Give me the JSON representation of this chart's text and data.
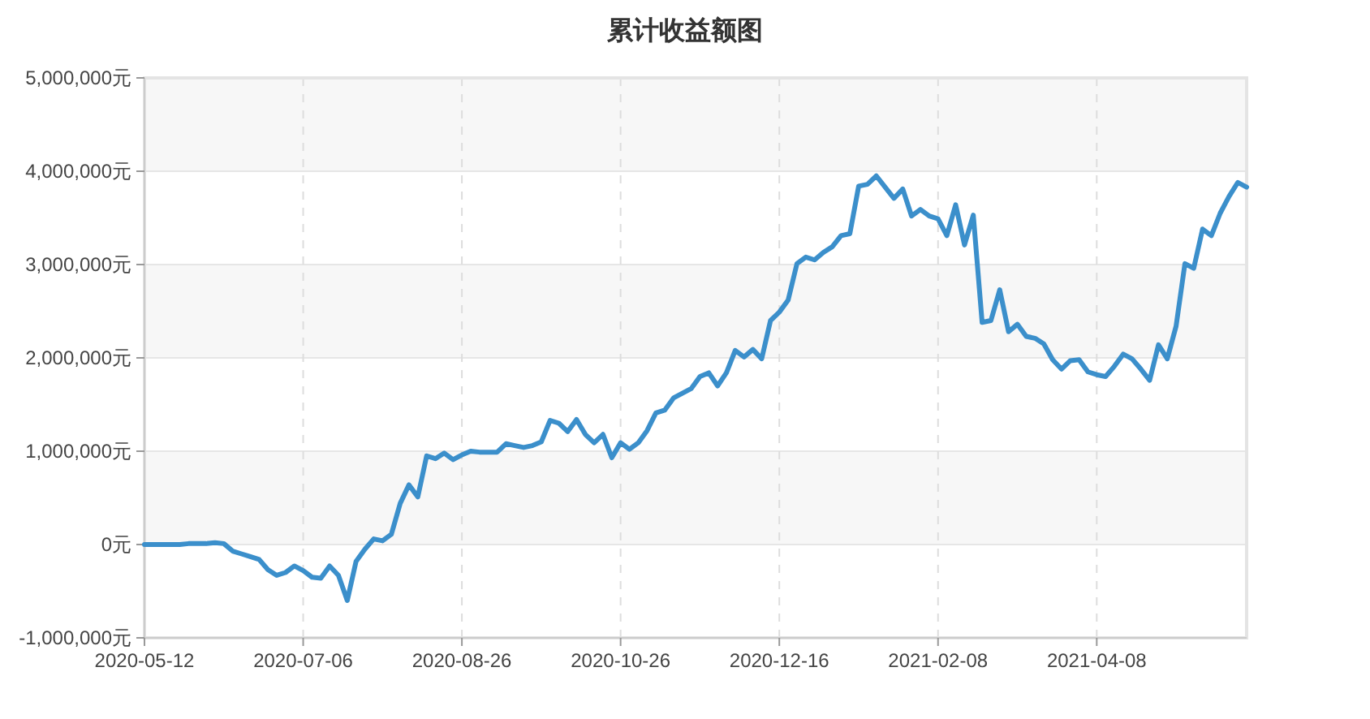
{
  "chart_data": {
    "type": "line",
    "title": "累计收益额图",
    "categories": [
      "2020-05-12",
      null,
      null,
      null,
      null,
      null,
      null,
      null,
      null,
      null,
      null,
      null,
      null,
      null,
      null,
      null,
      null,
      null,
      "2020-07-06",
      null,
      null,
      null,
      null,
      null,
      null,
      null,
      null,
      null,
      null,
      null,
      null,
      null,
      null,
      null,
      null,
      null,
      "2020-08-26",
      null,
      null,
      null,
      null,
      null,
      null,
      null,
      null,
      null,
      null,
      null,
      null,
      null,
      null,
      null,
      null,
      null,
      "2020-10-26",
      null,
      null,
      null,
      null,
      null,
      null,
      null,
      null,
      null,
      null,
      null,
      null,
      null,
      null,
      null,
      null,
      null,
      "2020-12-16",
      null,
      null,
      null,
      null,
      null,
      null,
      null,
      null,
      null,
      null,
      null,
      null,
      null,
      null,
      null,
      null,
      null,
      "2021-02-08",
      null,
      null,
      null,
      null,
      null,
      null,
      null,
      null,
      null,
      null,
      null,
      null,
      null,
      null,
      null,
      null,
      null,
      "2021-04-08",
      null,
      null,
      null,
      null,
      null,
      null,
      null,
      null,
      null,
      null,
      null,
      null,
      null,
      null,
      null,
      null,
      null
    ],
    "values": [
      0,
      0,
      0,
      0,
      0,
      10000,
      10000,
      10000,
      20000,
      10000,
      -70000,
      -100000,
      -130000,
      -160000,
      -270000,
      -330000,
      -300000,
      -230000,
      -280000,
      -350000,
      -360000,
      -230000,
      -330000,
      -600000,
      -180000,
      -50000,
      60000,
      40000,
      110000,
      440000,
      640000,
      510000,
      950000,
      920000,
      980000,
      910000,
      960000,
      1000000,
      990000,
      990000,
      990000,
      1080000,
      1060000,
      1040000,
      1060000,
      1100000,
      1330000,
      1300000,
      1210000,
      1340000,
      1180000,
      1090000,
      1180000,
      930000,
      1090000,
      1020000,
      1090000,
      1220000,
      1410000,
      1440000,
      1570000,
      1620000,
      1670000,
      1800000,
      1840000,
      1700000,
      1840000,
      2080000,
      2010000,
      2090000,
      1990000,
      2400000,
      2490000,
      2620000,
      3010000,
      3080000,
      3050000,
      3130000,
      3190000,
      3310000,
      3330000,
      3840000,
      3860000,
      3950000,
      3830000,
      3710000,
      3810000,
      3520000,
      3590000,
      3520000,
      3490000,
      3310000,
      3640000,
      3210000,
      3530000,
      2380000,
      2400000,
      2730000,
      2280000,
      2360000,
      2230000,
      2210000,
      2150000,
      1980000,
      1880000,
      1970000,
      1980000,
      1850000,
      1820000,
      1800000,
      1910000,
      2040000,
      1990000,
      1880000,
      1760000,
      2140000,
      1990000,
      2340000,
      3010000,
      2960000,
      3380000,
      3310000,
      3550000,
      3730000,
      3880000,
      3830000
    ],
    "color": "#3b8fcb",
    "ylim": [
      -1000000,
      5000000
    ],
    "yticks": [
      {
        "value": -1000000,
        "label": "-1,000,000元"
      },
      {
        "value": 0,
        "label": "0元"
      },
      {
        "value": 1000000,
        "label": "1,000,000元"
      },
      {
        "value": 2000000,
        "label": "2,000,000元"
      },
      {
        "value": 3000000,
        "label": "3,000,000元"
      },
      {
        "value": 4000000,
        "label": "4,000,000元"
      },
      {
        "value": 5000000,
        "label": "5,000,000元"
      }
    ],
    "grid": true
  }
}
